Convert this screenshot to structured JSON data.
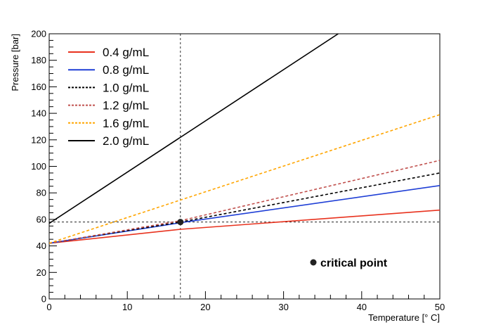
{
  "chart_data": {
    "type": "line",
    "title": "",
    "xlabel": "Temperature [° C]",
    "ylabel": "Pressure [bar]",
    "xlim": [
      0,
      50
    ],
    "ylim": [
      0,
      200
    ],
    "x_ticks": [
      0,
      10,
      20,
      30,
      40,
      50
    ],
    "y_ticks": [
      0,
      20,
      40,
      60,
      80,
      100,
      120,
      140,
      160,
      180,
      200
    ],
    "grid": false,
    "legend_position": "top-left",
    "series": [
      {
        "name": "0.4 g/mL",
        "color": "#e8321e",
        "dash": "solid",
        "x": [
          0,
          16.8,
          50
        ],
        "y": [
          42,
          52.5,
          67
        ]
      },
      {
        "name": "0.8 g/mL",
        "color": "#1f3fd6",
        "dash": "solid",
        "x": [
          0,
          16.8,
          50
        ],
        "y": [
          42,
          57.5,
          85.5
        ]
      },
      {
        "name": "1.0 g/mL",
        "color": "#000000",
        "dash": "dashed",
        "x": [
          0,
          16.8,
          50
        ],
        "y": [
          42,
          58,
          95
        ]
      },
      {
        "name": "1.2 g/mL",
        "color": "#c0504d",
        "dash": "dashed",
        "x": [
          0,
          16.8,
          50
        ],
        "y": [
          42,
          59,
          104.5
        ]
      },
      {
        "name": "1.6 g/mL",
        "color": "#ffa500",
        "dash": "dashed",
        "x": [
          0,
          50
        ],
        "y": [
          42,
          139
        ]
      },
      {
        "name": "2.0 g/mL",
        "color": "#000000",
        "dash": "solid",
        "x": [
          0,
          37
        ],
        "y": [
          57,
          200
        ]
      }
    ],
    "critical_point": {
      "x": 16.8,
      "y": 58,
      "label": "critical point"
    },
    "reference_lines": {
      "vertical_x": 16.8,
      "horizontal_y": 58
    }
  }
}
